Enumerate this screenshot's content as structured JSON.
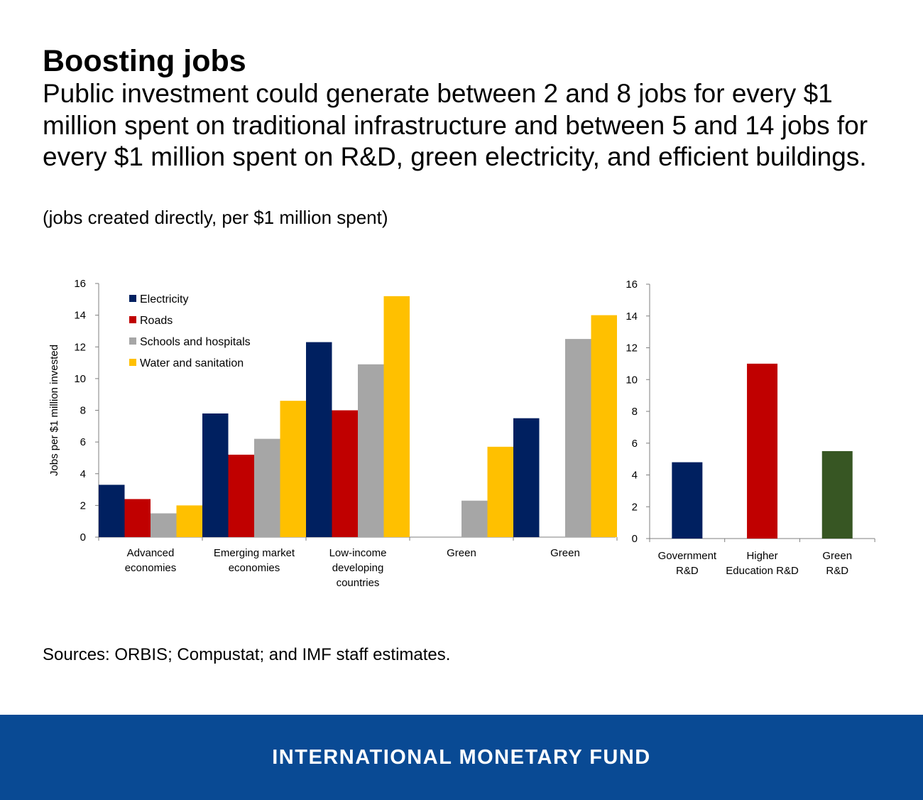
{
  "header": {
    "title": "Boosting jobs",
    "subtitle": "Public investment could generate between 2 and 8 jobs for every $1 million spent on traditional infrastructure and between 5 and 14 jobs for every $1 million spent on R&D, green electricity, and efficient buildings.",
    "units": "(jobs created directly, per $1 million spent)"
  },
  "chart_data": [
    {
      "type": "bar",
      "ylabel": "Jobs per $1 million invested",
      "ylim": [
        0,
        16
      ],
      "yticks": [
        0,
        2,
        4,
        6,
        8,
        10,
        12,
        14,
        16
      ],
      "legend_position": "top-left",
      "categories": [
        [
          "Advanced",
          "economies"
        ],
        [
          "Emerging market",
          "economies"
        ],
        [
          "Low-income",
          "developing",
          "countries"
        ],
        [
          "Green"
        ],
        [
          "Green"
        ]
      ],
      "series": [
        {
          "name": "Electricity",
          "color": "#002060",
          "values": [
            3.3,
            7.8,
            12.3,
            null,
            7.5
          ]
        },
        {
          "name": "Roads",
          "color": "#c00000",
          "values": [
            2.4,
            5.2,
            8.0,
            null,
            null
          ]
        },
        {
          "name": "Schools and hospitals",
          "color": "#a6a6a6",
          "values": [
            1.5,
            6.2,
            10.9,
            2.3,
            12.5
          ]
        },
        {
          "name": "Water and sanitation",
          "color": "#ffc000",
          "values": [
            2.0,
            8.6,
            15.2,
            5.7,
            14.0
          ]
        }
      ]
    },
    {
      "type": "bar",
      "ylim": [
        0,
        16
      ],
      "yticks": [
        0,
        2,
        4,
        6,
        8,
        10,
        12,
        14,
        16
      ],
      "categories": [
        [
          "Government",
          "R&D"
        ],
        [
          "Higher",
          "Education R&D"
        ],
        [
          "Green",
          "R&D"
        ]
      ],
      "values": [
        4.8,
        11.0,
        5.5
      ],
      "colors": [
        "#002060",
        "#c00000",
        "#375623"
      ]
    }
  ],
  "source": "Sources: ORBIS; Compustat; and IMF staff estimates.",
  "footer": {
    "label": "INTERNATIONAL MONETARY FUND"
  }
}
